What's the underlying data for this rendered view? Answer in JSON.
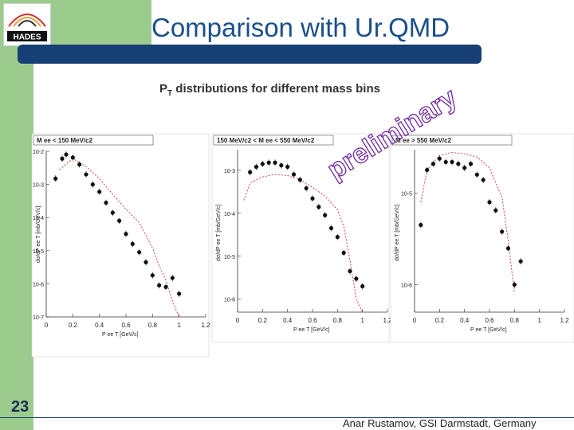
{
  "slide": {
    "title": "Comparison with Ur.QMD",
    "subtitle_main": "P",
    "subtitle_sub": "T",
    "subtitle_rest": " distributions for different mass bins",
    "slide_number": "23",
    "footer": "Anar Rustamov, GSI Darmstadt, Germany",
    "logo_text": "HADES",
    "watermark": "preliminary"
  },
  "panels": [
    {
      "label": "M ee < 150 MeV/c2",
      "ytick_labels": [
        "10-2",
        "10-3",
        "10-4",
        "10-5",
        "10-6",
        "10-7"
      ],
      "xtick_labels": [
        "0",
        "0.2",
        "0.4",
        "0.6",
        "0.8",
        "1",
        "1.2"
      ],
      "ylabel": "dσ/dP ee T [mb/GeV/c]",
      "xlabel": "P ee T [GeV/c]"
    },
    {
      "label": "150 MeV/c2 < M ee < 550 MeV/c2",
      "ytick_labels": [
        "10-3",
        "10-4",
        "10-5",
        "10-6"
      ],
      "xtick_labels": [
        "0",
        "0.2",
        "0.4",
        "0.6",
        "0.8",
        "1",
        "1.2"
      ],
      "ylabel": "dσ/dP ee T [mb/GeV/c]",
      "xlabel": "P ee T [GeV/c]"
    },
    {
      "label": "M ee > 550 MeV/c2",
      "ytick_labels": [
        "10-5",
        "10-6"
      ],
      "xtick_labels": [
        "0",
        "0.2",
        "0.4",
        "0.6",
        "0.8",
        "1",
        "1.2"
      ],
      "ylabel": "dσ/dP ee T [mb/GeV/c]",
      "xlabel": "P ee T [GeV/c]"
    }
  ],
  "chart_data": [
    {
      "type": "scatter",
      "title": "M ee < 150 MeV/c2",
      "xlim": [
        0,
        1.2
      ],
      "ylog": true,
      "ylim": [
        1e-07,
        0.01
      ],
      "series": [
        {
          "x": [
            0.07,
            0.12,
            0.15,
            0.2,
            0.25,
            0.3,
            0.35,
            0.4,
            0.45,
            0.5,
            0.55,
            0.6,
            0.65,
            0.7,
            0.75,
            0.8,
            0.85,
            0.9,
            0.95,
            1.0
          ],
          "y": [
            0.0015,
            0.006,
            0.008,
            0.0065,
            0.004,
            0.002,
            0.001,
            0.0006,
            0.00028,
            0.00014,
            8e-05,
            3.2e-05,
            1.6e-05,
            9e-06,
            4.5e-06,
            1.8e-06,
            9e-07,
            8e-07,
            1.5e-06,
            5e-07
          ]
        },
        {
          "x": [
            0.1,
            0.2,
            0.3,
            0.4,
            0.5,
            0.6,
            0.7,
            0.8,
            0.85,
            0.9,
            0.95,
            1.0
          ],
          "y": [
            0.0028,
            0.006,
            0.0035,
            0.0015,
            0.0005,
            0.00018,
            7e-05,
            1.2e-05,
            3.5e-06,
            1.3e-06,
            3e-07,
            1e-07
          ]
        }
      ]
    },
    {
      "type": "scatter",
      "title": "150 MeV/c2 < M ee < 550 MeV/c2",
      "xlim": [
        0,
        1.2
      ],
      "ylog": true,
      "ylim": [
        5e-07,
        0.003
      ],
      "series": [
        {
          "x": [
            0.1,
            0.15,
            0.2,
            0.25,
            0.3,
            0.35,
            0.4,
            0.45,
            0.5,
            0.55,
            0.6,
            0.65,
            0.7,
            0.75,
            0.8,
            0.85,
            0.9,
            0.95,
            1.0
          ],
          "y": [
            0.0009,
            0.0012,
            0.0014,
            0.0015,
            0.0015,
            0.0013,
            0.0012,
            0.0008,
            0.0006,
            0.00038,
            0.00022,
            0.00014,
            9e-05,
            4.5e-05,
            2.8e-05,
            1.2e-05,
            4.5e-06,
            3e-06,
            2e-06
          ]
        },
        {
          "x": [
            0.05,
            0.1,
            0.2,
            0.3,
            0.4,
            0.5,
            0.6,
            0.7,
            0.8,
            0.85,
            0.9,
            0.95,
            1.0
          ],
          "y": [
            0.0002,
            0.0005,
            0.0007,
            0.0008,
            0.00075,
            0.0006,
            0.0004,
            0.00025,
            0.00012,
            5e-05,
            8e-06,
            1e-06,
            5e-07
          ]
        }
      ]
    },
    {
      "type": "scatter",
      "title": "M ee > 550 MeV/c2",
      "xlim": [
        0,
        1.2
      ],
      "ylog": true,
      "ylim": [
        5e-07,
        3e-05
      ],
      "series": [
        {
          "x": [
            0.05,
            0.1,
            0.15,
            0.2,
            0.25,
            0.3,
            0.35,
            0.4,
            0.45,
            0.5,
            0.55,
            0.6,
            0.65,
            0.7,
            0.75,
            0.8,
            0.85
          ],
          "y": [
            4.5e-06,
            1.8e-05,
            2.1e-05,
            2.4e-05,
            2.2e-05,
            2.2e-05,
            2.1e-05,
            1.9e-05,
            2.1e-05,
            1.6e-05,
            1.4e-05,
            8e-06,
            6.5e-06,
            3.8e-06,
            2.5e-06,
            1e-06,
            1.8e-06
          ]
        },
        {
          "x": [
            0.05,
            0.1,
            0.2,
            0.3,
            0.4,
            0.5,
            0.6,
            0.7,
            0.75,
            0.8
          ],
          "y": [
            8e-06,
            1.8e-05,
            2.6e-05,
            2.8e-05,
            2.7e-05,
            2.5e-05,
            1.9e-05,
            9e-06,
            3e-06,
            8e-07
          ]
        }
      ]
    }
  ]
}
